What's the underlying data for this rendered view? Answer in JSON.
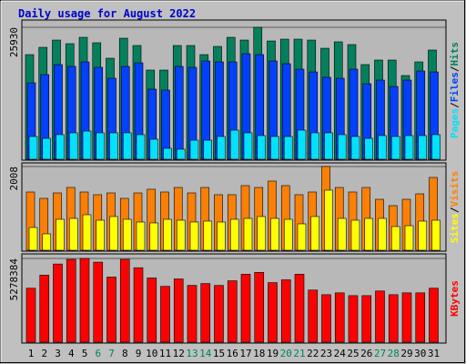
{
  "chart_data": [
    {
      "type": "bar",
      "title": "Daily usage for August 2022",
      "legend_separator": "/",
      "ylim": [
        0,
        25930
      ],
      "yticks": [
        25930
      ],
      "series": [
        {
          "name": "Hits",
          "color": "#00805c",
          "values": [
            20560,
            21990,
            23420,
            22710,
            23960,
            22890,
            19850,
            23780,
            22350,
            17520,
            17520,
            22350,
            22350,
            20560,
            22170,
            23960,
            23420,
            25930,
            23240,
            23600,
            23600,
            23420,
            21810,
            23070,
            22530,
            18600,
            19490,
            19490,
            16450,
            19130,
            21460
          ]
        },
        {
          "name": "Files",
          "color": "#0040ff",
          "values": [
            15020,
            16630,
            18600,
            18240,
            19130,
            18060,
            15910,
            18240,
            18950,
            13770,
            13590,
            18240,
            18060,
            19310,
            19130,
            19130,
            20740,
            20560,
            19310,
            18770,
            17700,
            17160,
            16100,
            15910,
            17700,
            14840,
            15550,
            14300,
            15550,
            17340,
            17160
          ]
        },
        {
          "name": "Pages",
          "color": "#00e0ff",
          "values": [
            4470,
            4110,
            4830,
            5190,
            5540,
            5190,
            5190,
            5190,
            4830,
            3930,
            2150,
            1970,
            3750,
            3750,
            4470,
            5720,
            5190,
            4650,
            4470,
            4470,
            5720,
            5190,
            5190,
            4830,
            4470,
            4110,
            4650,
            4470,
            4650,
            4650,
            4830
          ]
        }
      ]
    },
    {
      "type": "bar",
      "ylim": [
        0,
        2008
      ],
      "yticks": [
        2008
      ],
      "series": [
        {
          "name": "Visits",
          "color": "#ff8000",
          "values": [
            1397,
            1244,
            1375,
            1506,
            1397,
            1332,
            1375,
            1244,
            1375,
            1463,
            1397,
            1506,
            1375,
            1506,
            1332,
            1332,
            1550,
            1506,
            1659,
            1550,
            1332,
            1397,
            2008,
            1506,
            1397,
            1506,
            1222,
            1070,
            1222,
            1353,
            1746
          ]
        },
        {
          "name": "Sites",
          "color": "#ffff00",
          "values": [
            546,
            393,
            742,
            764,
            851,
            720,
            808,
            742,
            677,
            655,
            742,
            720,
            677,
            699,
            677,
            742,
            764,
            808,
            764,
            742,
            633,
            808,
            1441,
            764,
            720,
            764,
            764,
            568,
            589,
            699,
            720
          ]
        }
      ]
    },
    {
      "type": "bar",
      "ylim": [
        0,
        5278384
      ],
      "yticks": [
        5278384
      ],
      "categories": [
        "1",
        "2",
        "3",
        "4",
        "5",
        "6",
        "7",
        "8",
        "9",
        "10",
        "11",
        "12",
        "13",
        "14",
        "15",
        "16",
        "17",
        "18",
        "19",
        "20",
        "21",
        "22",
        "23",
        "24",
        "25",
        "26",
        "27",
        "28",
        "29",
        "30",
        "31"
      ],
      "category_colors": [
        "#000000",
        "#000000",
        "#000000",
        "#000000",
        "#000000",
        "#00805c",
        "#00805c",
        "#000000",
        "#000000",
        "#000000",
        "#000000",
        "#000000",
        "#00805c",
        "#00805c",
        "#000000",
        "#000000",
        "#000000",
        "#000000",
        "#000000",
        "#00805c",
        "#00805c",
        "#000000",
        "#000000",
        "#000000",
        "#000000",
        "#000000",
        "#00805c",
        "#00805c",
        "#000000",
        "#000000",
        "#000000"
      ],
      "series": [
        {
          "name": "KBytes",
          "color": "#ff0000",
          "values": [
            3401600,
            4222700,
            4926500,
            5219700,
            5278384,
            5043800,
            4105400,
            5219700,
            4691900,
            4046800,
            3519000,
            3988100,
            3577600,
            3694900,
            3577600,
            3870800,
            4281400,
            4398700,
            3753500,
            3929400,
            4281400,
            3284300,
            2991100,
            3108400,
            2932400,
            2932400,
            3225700,
            2991100,
            3108400,
            3108400,
            3401600
          ]
        }
      ]
    }
  ]
}
